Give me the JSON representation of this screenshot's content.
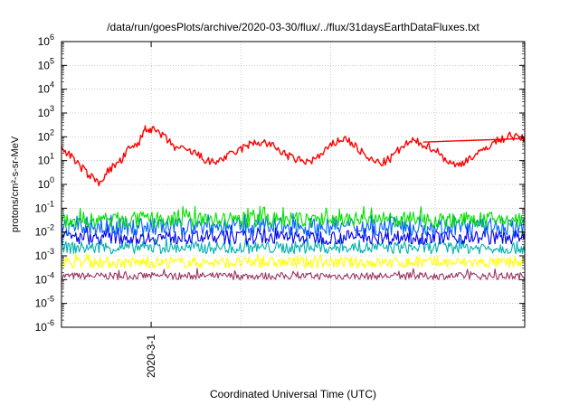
{
  "chart_data": {
    "type": "line",
    "title": "/data/run/goesPlots/archive/2020-03-30/flux/../flux/31daysEarthDataFluxes.txt",
    "xlabel": "Coordinated Universal Time (UTC)",
    "ylabel": "protons/cm²-s-sr-MeV",
    "yscale": "log",
    "ylim_exponents": [
      -6,
      6
    ],
    "ytick_exponents": [
      -6,
      -5,
      -4,
      -3,
      -2,
      -1,
      0,
      1,
      2,
      3,
      4,
      5,
      6
    ],
    "x_range_days": [
      0,
      31
    ],
    "xticks": [
      {
        "day": 6,
        "label": "2020-3-1"
      }
    ],
    "x_grid_days": [
      6,
      12,
      18,
      25
    ],
    "grid": true,
    "series": [
      {
        "color": "#ff0000",
        "points": [
          [
            0,
            30
          ],
          [
            0.5,
            20
          ],
          [
            1,
            8
          ],
          [
            1.5,
            4
          ],
          [
            2,
            2
          ],
          [
            2.5,
            1.2
          ],
          [
            3,
            3
          ],
          [
            3.5,
            6
          ],
          [
            4,
            10
          ],
          [
            4.5,
            30
          ],
          [
            5,
            40
          ],
          [
            5.3,
            80
          ],
          [
            5.6,
            250
          ],
          [
            6,
            200
          ],
          [
            6.5,
            150
          ],
          [
            7,
            80
          ],
          [
            7.5,
            40
          ],
          [
            8,
            30
          ],
          [
            8.5,
            25
          ],
          [
            9,
            20
          ],
          [
            9.5,
            12
          ],
          [
            10,
            8
          ],
          [
            10.5,
            10
          ],
          [
            11,
            14
          ],
          [
            11.5,
            20
          ],
          [
            12,
            30
          ],
          [
            12.5,
            45
          ],
          [
            13,
            55
          ],
          [
            13.5,
            60
          ],
          [
            14,
            45
          ],
          [
            14.5,
            30
          ],
          [
            15,
            18
          ],
          [
            15.5,
            12
          ],
          [
            16,
            10
          ],
          [
            16.5,
            9
          ],
          [
            17,
            12
          ],
          [
            17.5,
            20
          ],
          [
            18,
            40
          ],
          [
            18.5,
            70
          ],
          [
            19,
            85
          ],
          [
            19.5,
            50
          ],
          [
            20,
            25
          ],
          [
            20.5,
            12
          ],
          [
            21,
            9
          ],
          [
            21.5,
            8
          ],
          [
            22,
            12
          ],
          [
            22.5,
            25
          ],
          [
            23,
            45
          ],
          [
            23.5,
            65
          ],
          [
            24,
            55
          ],
          [
            24.5,
            40
          ],
          [
            25,
            30
          ],
          [
            25.5,
            15
          ],
          [
            26,
            8
          ],
          [
            26.5,
            6
          ],
          [
            27,
            10
          ],
          [
            27.5,
            15
          ],
          [
            28,
            20
          ],
          [
            28.5,
            40
          ],
          [
            29,
            60
          ],
          [
            29.5,
            80
          ],
          [
            30,
            120
          ],
          [
            30.5,
            90
          ],
          [
            31,
            85
          ]
        ]
      },
      {
        "color": "#00e000",
        "band": [
          0.015,
          0.07
        ],
        "spike": 0.12
      },
      {
        "color": "#0066ff",
        "band": [
          0.007,
          0.04
        ],
        "spike": 0.06
      },
      {
        "color": "#0000ee",
        "band": [
          0.003,
          0.012
        ],
        "spike": 0.02
      },
      {
        "color": "#00b0b0",
        "band": [
          0.0012,
          0.004
        ],
        "spike": 0.006
      },
      {
        "color": "#ffff00",
        "band": [
          0.0003,
          0.0009
        ],
        "spike": 0.0012
      },
      {
        "color": "#993366",
        "band": [
          0.0001,
          0.0002
        ],
        "spike": 0.0003
      }
    ]
  }
}
